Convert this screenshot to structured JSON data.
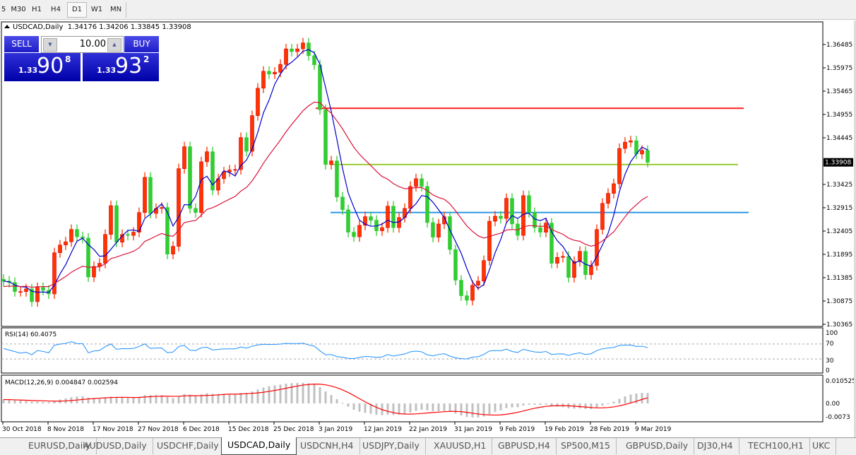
{
  "toolbar": {
    "timeframes": [
      {
        "label": "5",
        "active": false
      },
      {
        "label": "M30",
        "active": false
      },
      {
        "label": "H1",
        "active": false
      },
      {
        "label": "H4",
        "active": false
      },
      {
        "label": "D1",
        "active": true
      },
      {
        "label": "W1",
        "active": false
      },
      {
        "label": "MN",
        "active": false
      }
    ]
  },
  "chart": {
    "symbol_header": "USDCAD,Daily",
    "ohlc_header": "1.34176 1.34206 1.33845 1.33908",
    "current_price": "1.33908"
  },
  "trade_panel": {
    "sell_label": "SELL",
    "buy_label": "BUY",
    "lot": "10.00",
    "sell": {
      "prefix": "1.33",
      "big": "90",
      "sup": "8"
    },
    "buy": {
      "prefix": "1.33",
      "big": "93",
      "sup": "2"
    }
  },
  "rsi": {
    "label": "RSI(14) 60.4075",
    "ticks": [
      "100",
      "70",
      "30",
      "0"
    ]
  },
  "macd": {
    "label": "MACD(12,26,9) 0.004847 0.002594",
    "ticks": [
      "0.010525",
      "0.00",
      "-0.0073"
    ]
  },
  "colors": {
    "up_candle": "#ff3300",
    "down_candle": "#32cd32",
    "fast_ma": "#0000cc",
    "slow_ma": "#dc143c",
    "rsi_line": "#1e90ff",
    "macd_hist": "#c0c0c0",
    "signal_line": "#ff0000",
    "hline_red": "#ff2020",
    "hline_yellow": "#9acd32",
    "hline_blue": "#3399e6"
  },
  "chart_data": {
    "type": "candlestick",
    "price_ticks": [
      "1.36485",
      "1.35975",
      "1.35465",
      "1.34955",
      "1.34445",
      "1.33425",
      "1.32915",
      "1.32405",
      "1.31895",
      "1.31385",
      "1.30875",
      "1.30365"
    ],
    "ylim": [
      1.30365,
      1.36485
    ],
    "date_ticks": [
      "30 Oct 2018",
      "8 Nov 2018",
      "17 Nov 2018",
      "27 Nov 2018",
      "6 Dec 2018",
      "15 Dec 2018",
      "25 Dec 2018",
      "3 Jan 2019",
      "12 Jan 2019",
      "22 Jan 2019",
      "31 Jan 2019",
      "9 Feb 2019",
      "19 Feb 2019",
      "28 Feb 2019",
      "9 Mar 2019"
    ],
    "closes": [
      1.3131,
      1.3128,
      1.3108,
      1.3108,
      1.3114,
      1.3086,
      1.3117,
      1.3111,
      1.3103,
      1.3193,
      1.321,
      1.3217,
      1.3244,
      1.3228,
      1.3225,
      1.314,
      1.3163,
      1.317,
      1.3233,
      1.3296,
      1.3216,
      1.3233,
      1.3231,
      1.3238,
      1.3281,
      1.3358,
      1.3279,
      1.329,
      1.3292,
      1.319,
      1.3207,
      1.3377,
      1.3425,
      1.329,
      1.3281,
      1.3392,
      1.3414,
      1.333,
      1.3355,
      1.337,
      1.3374,
      1.3375,
      1.3445,
      1.3415,
      1.3493,
      1.3553,
      1.359,
      1.3584,
      1.3588,
      1.3605,
      1.3639,
      1.3633,
      1.3639,
      1.3652,
      1.3624,
      1.3604,
      1.3506,
      1.3386,
      1.3394,
      1.3315,
      1.3287,
      1.3238,
      1.3228,
      1.3253,
      1.3272,
      1.3264,
      1.3241,
      1.3248,
      1.3295,
      1.3248,
      1.327,
      1.329,
      1.3338,
      1.3355,
      1.3338,
      1.3259,
      1.3227,
      1.3256,
      1.3272,
      1.32,
      1.3133,
      1.3099,
      1.3089,
      1.3122,
      1.3131,
      1.3176,
      1.3262,
      1.3273,
      1.3268,
      1.3312,
      1.3256,
      1.3231,
      1.3318,
      1.3281,
      1.3248,
      1.3238,
      1.3258,
      1.317,
      1.3183,
      1.3185,
      1.3139,
      1.3174,
      1.3196,
      1.3145,
      1.3165,
      1.3244,
      1.3301,
      1.3323,
      1.3344,
      1.3421,
      1.3435,
      1.3438,
      1.3409,
      1.3417,
      1.33908
    ],
    "horizontal_lines": [
      {
        "price": 1.3509,
        "color": "#ff2020"
      },
      {
        "price": 1.3386,
        "color": "#9acd32"
      },
      {
        "price": 1.3281,
        "color": "#3399e6"
      }
    ]
  },
  "tabs": [
    {
      "label": "EURUSD,Daily",
      "active": false
    },
    {
      "label": "AUDUSD,Daily",
      "active": false
    },
    {
      "label": "USDCHF,Daily",
      "active": false
    },
    {
      "label": "USDCAD,Daily",
      "active": true
    },
    {
      "label": "USDCNH,H4",
      "active": false
    },
    {
      "label": "USDJPY,Daily",
      "active": false
    },
    {
      "label": "XAUUSD,H1",
      "active": false
    },
    {
      "label": "GBPUSD,H4",
      "active": false
    },
    {
      "label": "SP500,M15",
      "active": false
    },
    {
      "label": "GBPUSD,Daily",
      "active": false
    },
    {
      "label": "DJ30,H4",
      "active": false
    },
    {
      "label": "TECH100,H1",
      "active": false
    },
    {
      "label": "UKC",
      "active": false
    }
  ]
}
